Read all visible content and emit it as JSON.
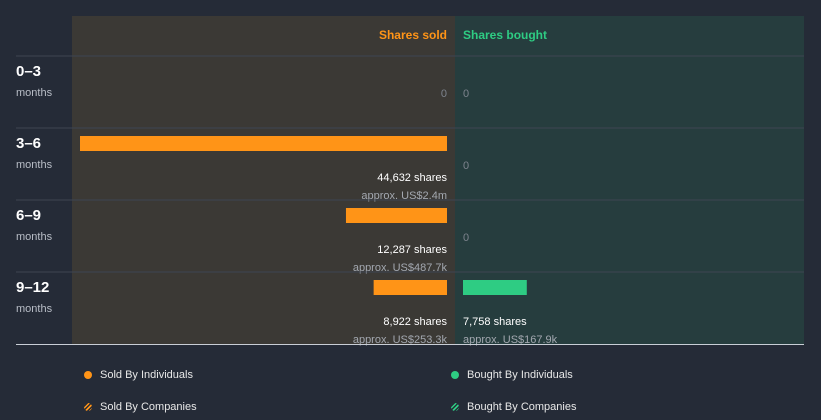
{
  "chart_data": {
    "type": "bar",
    "orientation": "horizontal",
    "headers": {
      "sold": "Shares sold",
      "bought": "Shares bought"
    },
    "periods": [
      {
        "label": "0–3",
        "unit": "months",
        "sold": {
          "shares": 0,
          "shares_text": "0",
          "value_text": ""
        },
        "bought": {
          "shares": 0,
          "shares_text": "0",
          "value_text": ""
        }
      },
      {
        "label": "3–6",
        "unit": "months",
        "sold": {
          "shares": 44632,
          "shares_text": "44,632 shares",
          "value_text": "approx. US$2.4m"
        },
        "bought": {
          "shares": 0,
          "shares_text": "0",
          "value_text": ""
        }
      },
      {
        "label": "6–9",
        "unit": "months",
        "sold": {
          "shares": 12287,
          "shares_text": "12,287 shares",
          "value_text": "approx. US$487.7k"
        },
        "bought": {
          "shares": 0,
          "shares_text": "0",
          "value_text": ""
        }
      },
      {
        "label": "9–12",
        "unit": "months",
        "sold": {
          "shares": 8922,
          "shares_text": "8,922 shares",
          "value_text": "approx. US$253.3k"
        },
        "bought": {
          "shares": 7758,
          "shares_text": "7,758 shares",
          "value_text": "approx. US$167.9k"
        }
      }
    ],
    "legend": [
      {
        "label": "Sold By Individuals",
        "color": "#ff9417",
        "style": "solid"
      },
      {
        "label": "Bought By Individuals",
        "color": "#2ecc83",
        "style": "solid"
      },
      {
        "label": "Sold By Companies",
        "color": "#ff9417",
        "style": "hatched"
      },
      {
        "label": "Bought By Companies",
        "color": "#2ecc83",
        "style": "hatched"
      }
    ],
    "colors": {
      "sold": "#ff9417",
      "bought": "#2ecc83",
      "sold_panel": "#3b3935",
      "bought_panel": "#263d3e",
      "sold_header": "#ff9417",
      "bought_header": "#2ecc83"
    }
  }
}
